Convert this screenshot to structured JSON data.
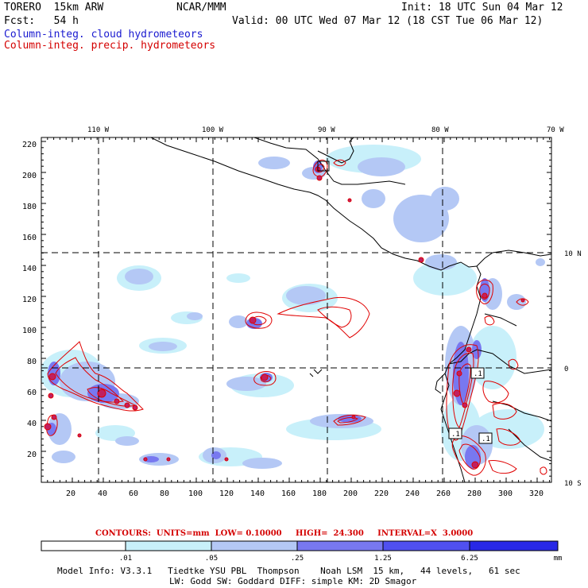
{
  "header": {
    "model": "TORERO  15km ARW",
    "org": "NCAR/MMM",
    "init": "Init: 18 UTC Sun 04 Mar 12",
    "fcst": "Fcst:   54 h",
    "valid": "Valid: 00 UTC Wed 07 Mar 12 (18 CST Tue 06 Mar 12)",
    "field_cloud": "Column-integ. cloud hydrometeors",
    "field_precip": "Column-integ. precip. hydrometeors"
  },
  "colors": {
    "cloud_text": "#1a1ad0",
    "precip_text": "#d40000",
    "shade_1": "#c8f0fa",
    "shade_2": "#b4c8f5",
    "shade_3": "#7878f0",
    "shade_4": "#5050f0",
    "shade_5": "#2828e6",
    "contour": "#e00000"
  },
  "map": {
    "top_lon_labels": [
      "110 W",
      "100 W",
      "90 W",
      "80 W",
      "70 W"
    ],
    "right_lat_labels": [
      "10 N",
      "0",
      "10 S"
    ],
    "left_grid_labels": [
      "220",
      "200",
      "180",
      "160",
      "140",
      "120",
      "100",
      "80",
      "60",
      "40",
      "20"
    ],
    "bottom_grid_labels": [
      "20",
      "40",
      "60",
      "80",
      "100",
      "120",
      "140",
      "160",
      "180",
      "200",
      "220",
      "240",
      "260",
      "280",
      "300",
      "320"
    ],
    "contour_labels": [
      ".1",
      ".1",
      ".1",
      ".1"
    ]
  },
  "legend": {
    "contours_line": "CONTOURS:  UNITS=mm  LOW= 0.10000     HIGH=  24.300     INTERVAL=X  3.0000",
    "ticks": [
      ".01",
      ".05",
      ".25",
      "1.25",
      "6.25"
    ],
    "unit": "mm"
  },
  "footer": {
    "line1": "Model Info: V3.3.1   Tiedtke YSU PBL  Thompson    Noah LSM  15 km,   44 levels,   61 sec",
    "line2": "LW: Godd SW: Goddard DIFF: simple KM: 2D Smagor"
  }
}
